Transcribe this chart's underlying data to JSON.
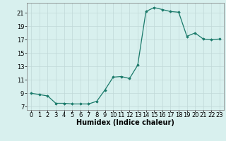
{
  "x": [
    0,
    1,
    2,
    3,
    4,
    5,
    6,
    7,
    8,
    9,
    10,
    11,
    12,
    13,
    14,
    15,
    16,
    17,
    18,
    19,
    20,
    21,
    22,
    23
  ],
  "y": [
    9.0,
    8.8,
    8.6,
    7.5,
    7.5,
    7.4,
    7.4,
    7.4,
    7.8,
    9.5,
    11.4,
    11.5,
    11.2,
    13.2,
    21.2,
    21.8,
    21.5,
    21.2,
    21.1,
    17.5,
    18.0,
    17.1,
    17.0,
    17.1
  ],
  "line_color": "#1a7a6a",
  "marker": "D",
  "marker_size": 1.8,
  "background_color": "#d8f0ee",
  "grid_color": "#c0d8d8",
  "xlabel": "Humidex (Indice chaleur)",
  "xlabel_fontsize": 7,
  "tick_fontsize": 6,
  "ylim": [
    6.5,
    22.5
  ],
  "xlim": [
    -0.5,
    23.5
  ],
  "yticks": [
    7,
    9,
    11,
    13,
    15,
    17,
    19,
    21
  ],
  "xticks": [
    0,
    1,
    2,
    3,
    4,
    5,
    6,
    7,
    8,
    9,
    10,
    11,
    12,
    13,
    14,
    15,
    16,
    17,
    18,
    19,
    20,
    21,
    22,
    23
  ]
}
